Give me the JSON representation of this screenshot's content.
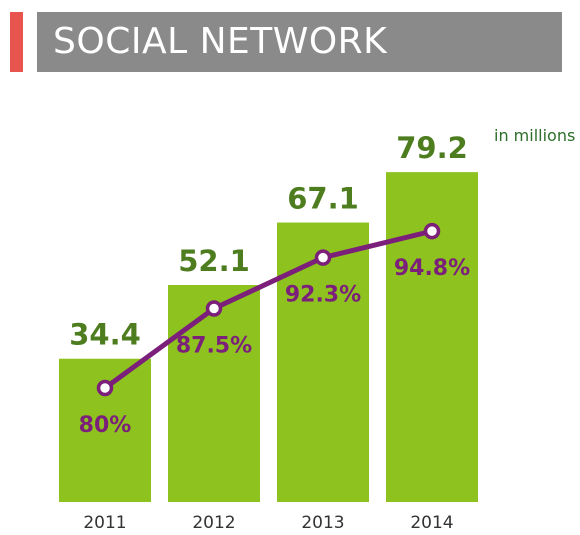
{
  "header": {
    "title": "SOCIAL NETWORK",
    "units_note": "in millions"
  },
  "colors": {
    "accent": "#e8554e",
    "title_bg": "#8a8a8a",
    "bar": "#8dc21f",
    "value_text": "#4d7d1e",
    "line": "#7b1f7a",
    "marker_fill": "#ffffff"
  },
  "chart_data": {
    "type": "bar",
    "title": "SOCIAL NETWORK",
    "categories": [
      "2011",
      "2012",
      "2013",
      "2014"
    ],
    "series": [
      {
        "type": "bar",
        "values": [
          34.4,
          52.1,
          67.1,
          79.2
        ],
        "value_labels": [
          "34.4",
          "52.1",
          "67.1",
          "79.2"
        ]
      },
      {
        "type": "line",
        "values": [
          80,
          87.5,
          92.3,
          94.8
        ],
        "value_labels": [
          "80%",
          "87.5%",
          "92.3%",
          "94.8%"
        ]
      }
    ],
    "units": "in millions",
    "grid": false,
    "legend": "none"
  }
}
